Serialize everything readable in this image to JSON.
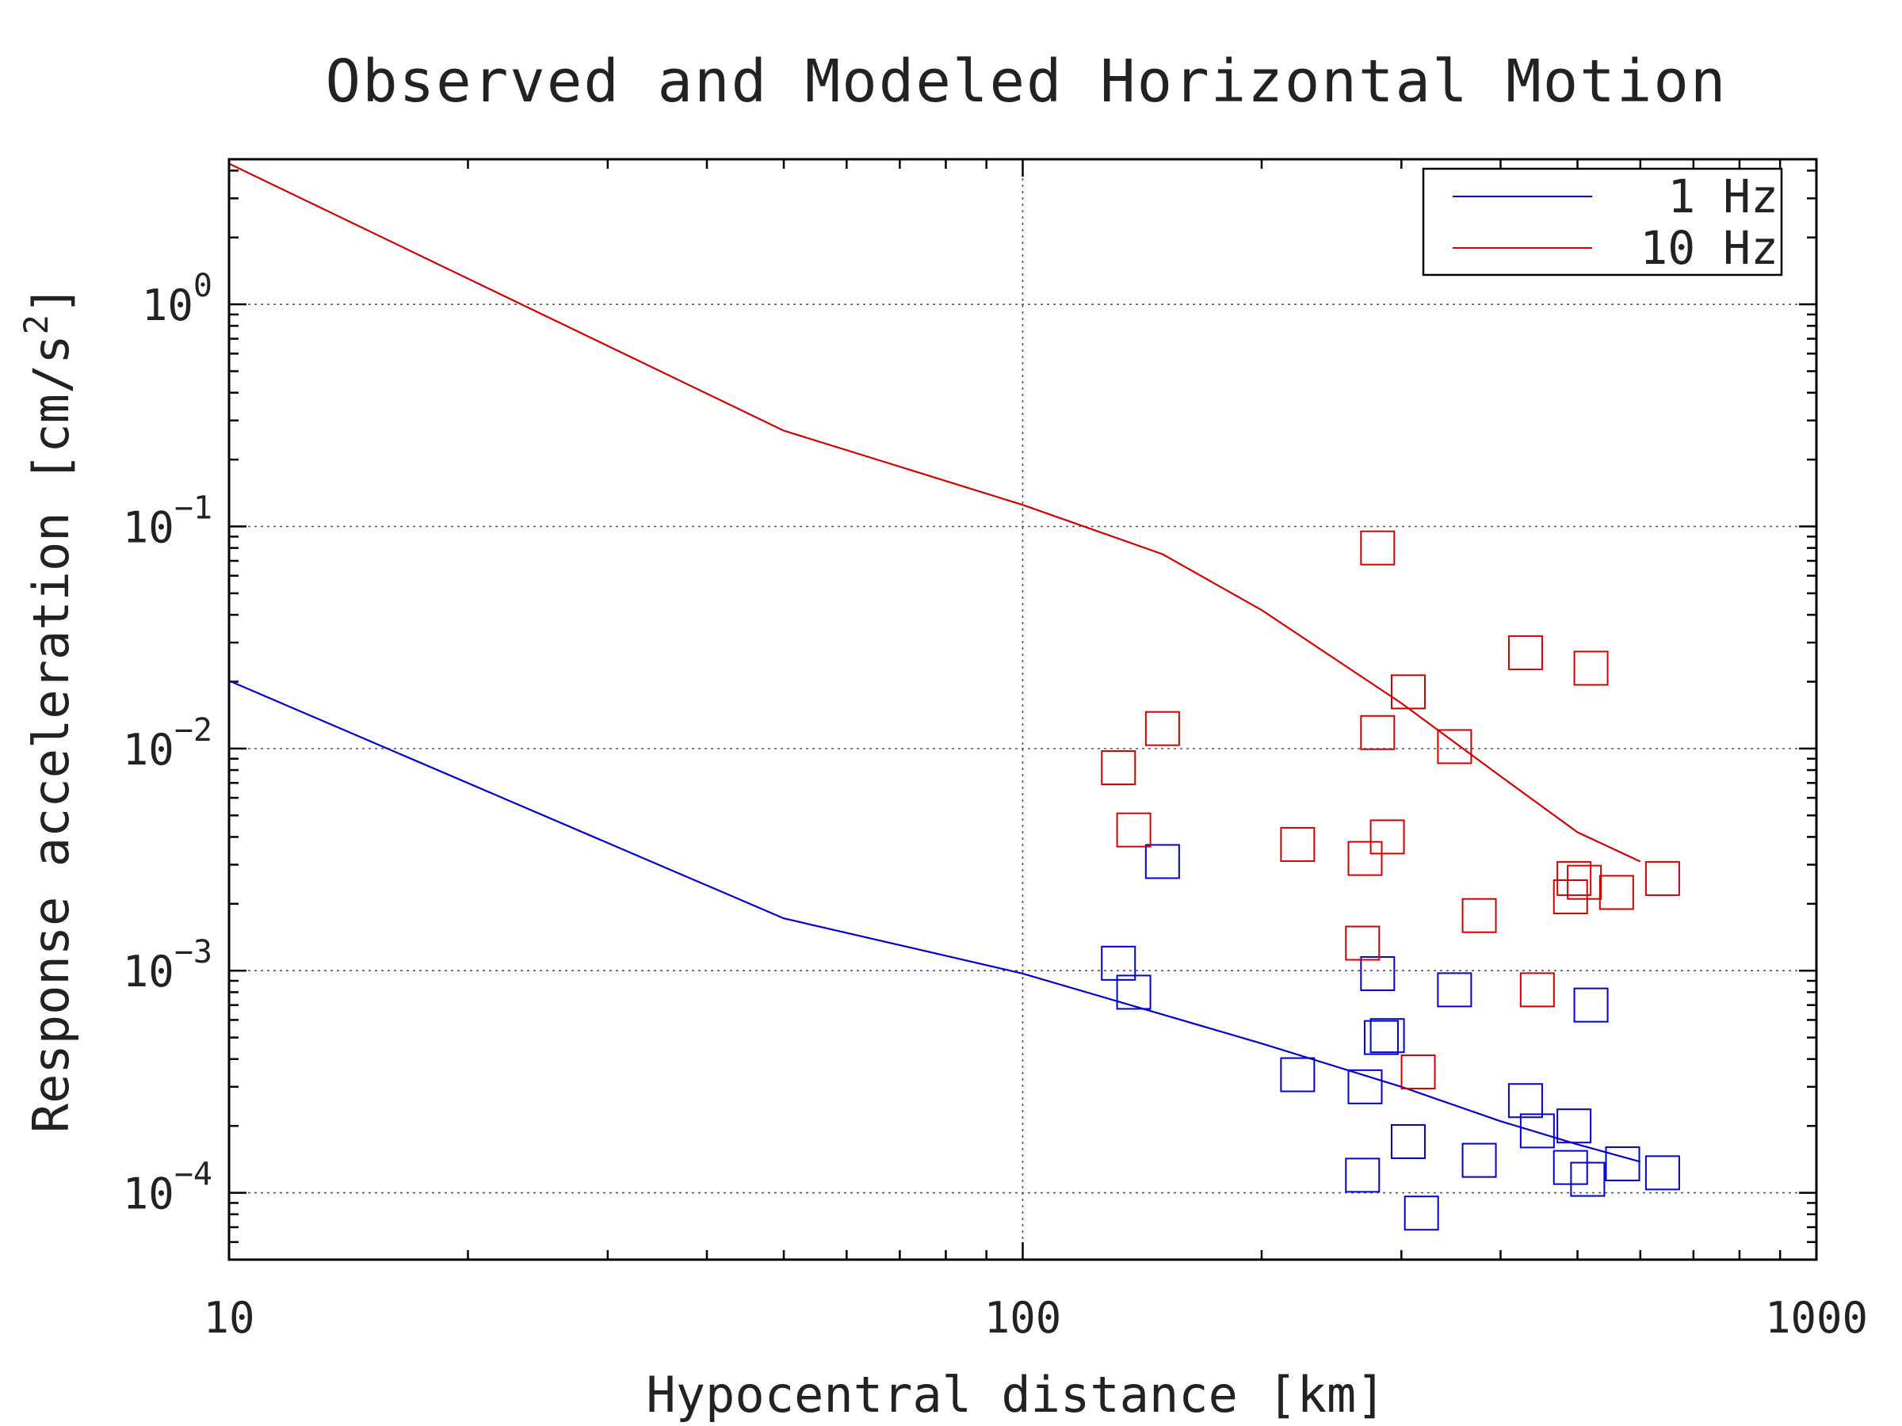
{
  "chart_data": {
    "type": "scatter",
    "title": "Observed and Modeled Horizontal Motion",
    "xlabel": "Hypocentral distance [km]",
    "ylabel": "Response acceleration [cm/s²]",
    "ylabel_parts": {
      "main": "Response acceleration [cm/s",
      "sup": "2",
      "end": "]"
    },
    "x_scale": "log",
    "y_scale": "log",
    "xlim": [
      10,
      1000
    ],
    "ylim": [
      5e-05,
      4.5
    ],
    "grid": true,
    "legend_position": "top-right",
    "x_ticks": [
      {
        "value": 10,
        "label": "10"
      },
      {
        "value": 100,
        "label": "100"
      },
      {
        "value": 1000,
        "label": "1000"
      }
    ],
    "y_ticks": [
      {
        "value": 0.0001,
        "base": "10",
        "exp": "−4"
      },
      {
        "value": 0.001,
        "base": "10",
        "exp": "−3"
      },
      {
        "value": 0.01,
        "base": "10",
        "exp": "−2"
      },
      {
        "value": 0.1,
        "base": "10",
        "exp": "−1"
      },
      {
        "value": 1,
        "base": "10",
        "exp": "0"
      }
    ],
    "series": [
      {
        "name": "1 Hz",
        "color": "#0000cc",
        "model_line": [
          [
            10,
            0.0202
          ],
          [
            50,
            0.00172
          ],
          [
            100,
            0.00097
          ],
          [
            200,
            0.00047
          ],
          [
            300,
            0.0003
          ],
          [
            400,
            0.00021
          ],
          [
            500,
            0.000165
          ],
          [
            600,
            0.000138
          ]
        ],
        "observed": [
          [
            132,
            0.00108
          ],
          [
            138,
            0.0008
          ],
          [
            150,
            0.0031
          ],
          [
            222,
            0.00034
          ],
          [
            270,
            0.0003
          ],
          [
            268,
            0.00012
          ],
          [
            280,
            0.00097
          ],
          [
            283,
            0.0005
          ],
          [
            288,
            0.00051
          ],
          [
            306,
            0.00017
          ],
          [
            318,
            8.1e-05
          ],
          [
            350,
            0.00082
          ],
          [
            376,
            0.00014
          ],
          [
            430,
            0.00026
          ],
          [
            445,
            0.00019
          ],
          [
            490,
            0.00013
          ],
          [
            495,
            0.0002
          ],
          [
            515,
            0.000115
          ],
          [
            520,
            0.0007
          ],
          [
            570,
            0.000135
          ],
          [
            640,
            0.000123
          ]
        ]
      },
      {
        "name": "10 Hz",
        "color": "#cc0000",
        "model_line": [
          [
            10,
            4.3
          ],
          [
            50,
            0.27
          ],
          [
            100,
            0.125
          ],
          [
            150,
            0.075
          ],
          [
            200,
            0.042
          ],
          [
            300,
            0.016
          ],
          [
            400,
            0.0075
          ],
          [
            500,
            0.0042
          ],
          [
            600,
            0.0031
          ]
        ],
        "observed": [
          [
            280,
            0.08
          ],
          [
            430,
            0.027
          ],
          [
            520,
            0.023
          ],
          [
            306,
            0.018
          ],
          [
            150,
            0.0123
          ],
          [
            280,
            0.0118
          ],
          [
            350,
            0.0102
          ],
          [
            132,
            0.0082
          ],
          [
            138,
            0.0043
          ],
          [
            222,
            0.0037
          ],
          [
            288,
            0.004
          ],
          [
            270,
            0.0032
          ],
          [
            268,
            0.00133
          ],
          [
            376,
            0.00177
          ],
          [
            445,
            0.00082
          ],
          [
            315,
            0.00035
          ],
          [
            490,
            0.00215
          ],
          [
            495,
            0.0026
          ],
          [
            510,
            0.0025
          ],
          [
            560,
            0.00225
          ],
          [
            640,
            0.0026
          ]
        ]
      }
    ]
  }
}
